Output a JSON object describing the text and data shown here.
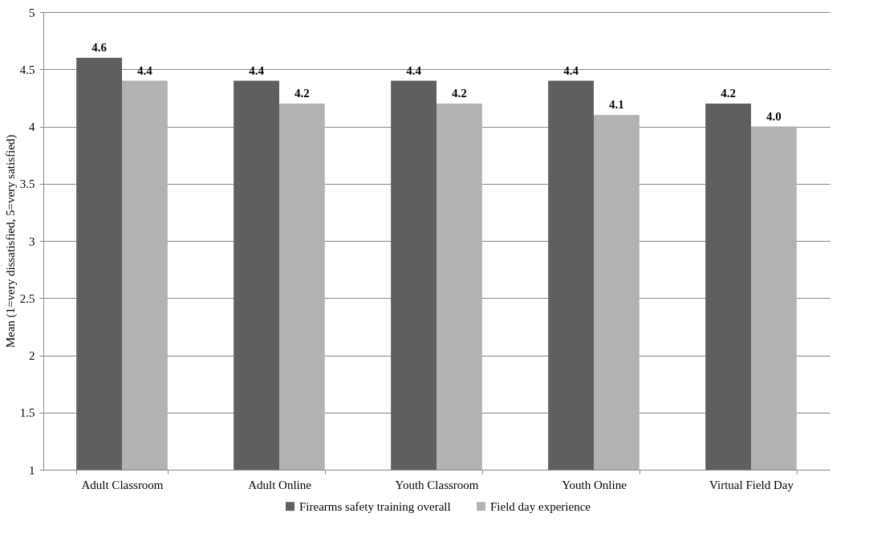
{
  "chart_data": {
    "type": "bar",
    "ylabel": "Mean (1=very dissatisfied, 5=very satisfied)",
    "categories": [
      "Adult Classroom",
      "Adult Online",
      "Youth Classroom",
      "Youth Online",
      "Virtual Field Day"
    ],
    "series": [
      {
        "name": "Firearms safety training overall",
        "color": "#5f5f5f",
        "values": [
          4.6,
          4.4,
          4.4,
          4.4,
          4.2
        ],
        "value_labels": [
          "4.6",
          "4.4",
          "4.4",
          "4.4",
          "4.2"
        ]
      },
      {
        "name": "Field day experience",
        "color": "#b2b2b2",
        "values": [
          4.4,
          4.2,
          4.2,
          4.1,
          4.0
        ],
        "value_labels": [
          "4.4",
          "4.2",
          "4.2",
          "4.1",
          "4.0"
        ]
      }
    ],
    "ylim": [
      1,
      5
    ],
    "yticks": [
      1,
      1.5,
      2,
      2.5,
      3,
      3.5,
      4,
      4.5,
      5
    ],
    "grid": "y",
    "legend": "bottom"
  }
}
